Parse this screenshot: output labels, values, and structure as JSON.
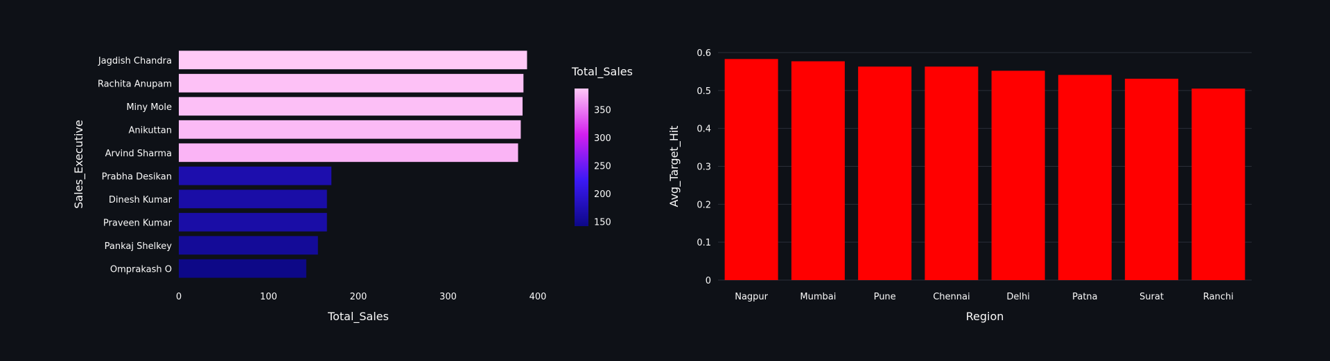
{
  "background": "#0e1117",
  "chart_data": [
    {
      "type": "bar",
      "orientation": "horizontal",
      "xlabel": "Total_Sales",
      "ylabel": "Sales_Executive",
      "xlim": [
        0,
        400
      ],
      "xticks": [
        0,
        100,
        200,
        300,
        400
      ],
      "grid": false,
      "categories": [
        "Jagdish Chandra",
        "Rachita Anupam",
        "Miny Mole",
        "Anikuttan",
        "Arvind Sharma",
        "Prabha Desikan",
        "Dinesh Kumar",
        "Praveen Kumar",
        "Pankaj Shelkey",
        "Omprakash O"
      ],
      "values": [
        388,
        384,
        383,
        381,
        378,
        170,
        165,
        165,
        155,
        142
      ],
      "colorbar": {
        "title": "Total_Sales",
        "range": [
          142,
          388
        ],
        "ticks": [
          150,
          200,
          250,
          300,
          350
        ],
        "colors": [
          "#0d0887",
          "#3b19f5",
          "#d31ff0",
          "#ffc9f6"
        ]
      }
    },
    {
      "type": "bar",
      "xlabel": "Region",
      "ylabel": "Avg_Target_Hit",
      "ylim": [
        0,
        0.6
      ],
      "yticks": [
        0,
        0.1,
        0.2,
        0.3,
        0.4,
        0.5,
        0.6
      ],
      "grid": true,
      "color": "#ff0000",
      "categories": [
        "Nagpur",
        "Mumbai",
        "Pune",
        "Chennai",
        "Delhi",
        "Patna",
        "Surat",
        "Ranchi"
      ],
      "values": [
        0.583,
        0.577,
        0.563,
        0.563,
        0.552,
        0.541,
        0.531,
        0.505
      ]
    }
  ]
}
